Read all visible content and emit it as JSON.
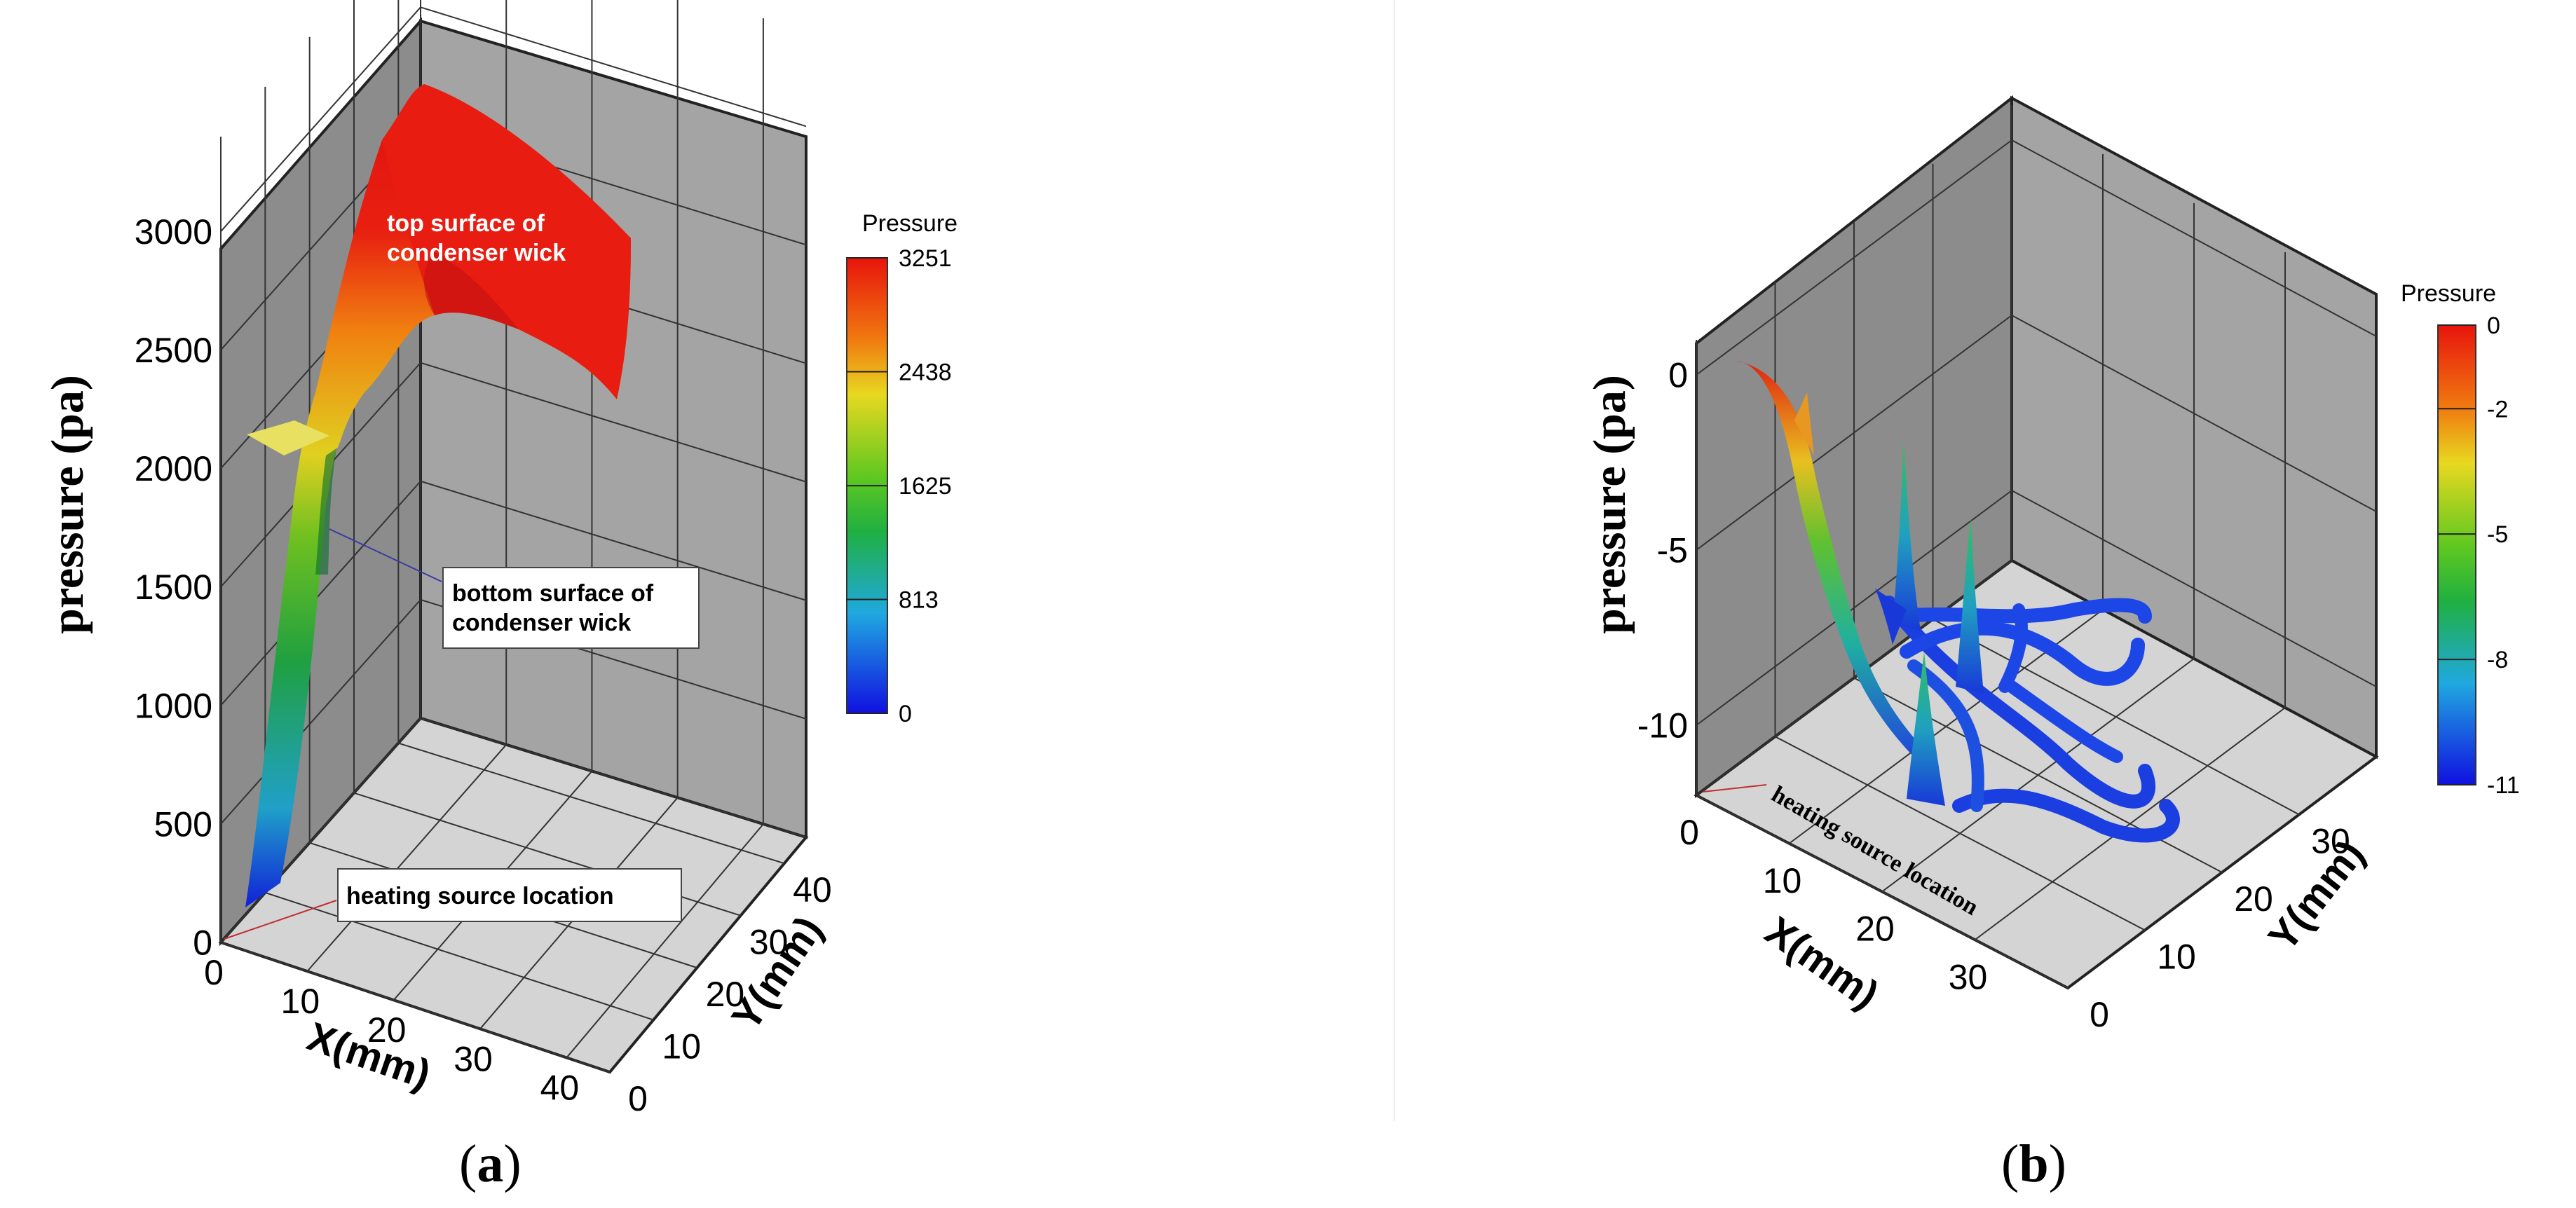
{
  "panels": [
    {
      "caption_letter": "a",
      "chart_data": {
        "type": "3d-surface",
        "zlabel": "pressure (pa)",
        "xlabel": "X(mm)",
        "ylabel": "Y(mm)",
        "x_ticks": [
          "0",
          "10",
          "20",
          "30",
          "40"
        ],
        "y_ticks": [
          "0",
          "10",
          "20",
          "30",
          "40"
        ],
        "z_ticks": [
          "0",
          "500",
          "1000",
          "1500",
          "2000",
          "2500",
          "3000"
        ],
        "xlim": [
          0,
          45
        ],
        "ylim": [
          0,
          45
        ],
        "zlim": [
          0,
          3400
        ],
        "colorbar": {
          "title": "Pressure",
          "ticks": [
            "3251",
            "2438",
            "1625",
            "813",
            "0"
          ],
          "min": 0,
          "max": 3251
        },
        "annotations": [
          {
            "text_lines": [
              "top surface of",
              "condenser wick"
            ]
          },
          {
            "text_lines": [
              "bottom surface of",
              "condenser wick"
            ]
          },
          {
            "text_lines": [
              "heating source location"
            ]
          }
        ],
        "colors": {
          "high": "#e8140c",
          "mid": "#d8d81a",
          "low": "#1a1ae8"
        }
      }
    },
    {
      "caption_letter": "b",
      "chart_data": {
        "type": "3d-streamtubes",
        "zlabel": "pressure (pa)",
        "xlabel": "X(mm)",
        "ylabel": "Y(mm)",
        "x_ticks": [
          "0",
          "10",
          "20",
          "30"
        ],
        "y_ticks": [
          "0",
          "10",
          "20",
          "30"
        ],
        "z_ticks": [
          "0",
          "-5",
          "-10"
        ],
        "xlim": [
          0,
          40
        ],
        "ylim": [
          0,
          40
        ],
        "zlim": [
          -12,
          1
        ],
        "colorbar": {
          "title": "Pressure",
          "ticks": [
            "0",
            "-2",
            "-5",
            "-8",
            "-11"
          ],
          "min": -11,
          "max": 0
        },
        "annotations": [
          {
            "text_lines": [
              "heating source location"
            ]
          }
        ],
        "colors": {
          "high": "#e8140c",
          "mid": "#30c030",
          "low": "#1a3ee8"
        }
      }
    }
  ]
}
